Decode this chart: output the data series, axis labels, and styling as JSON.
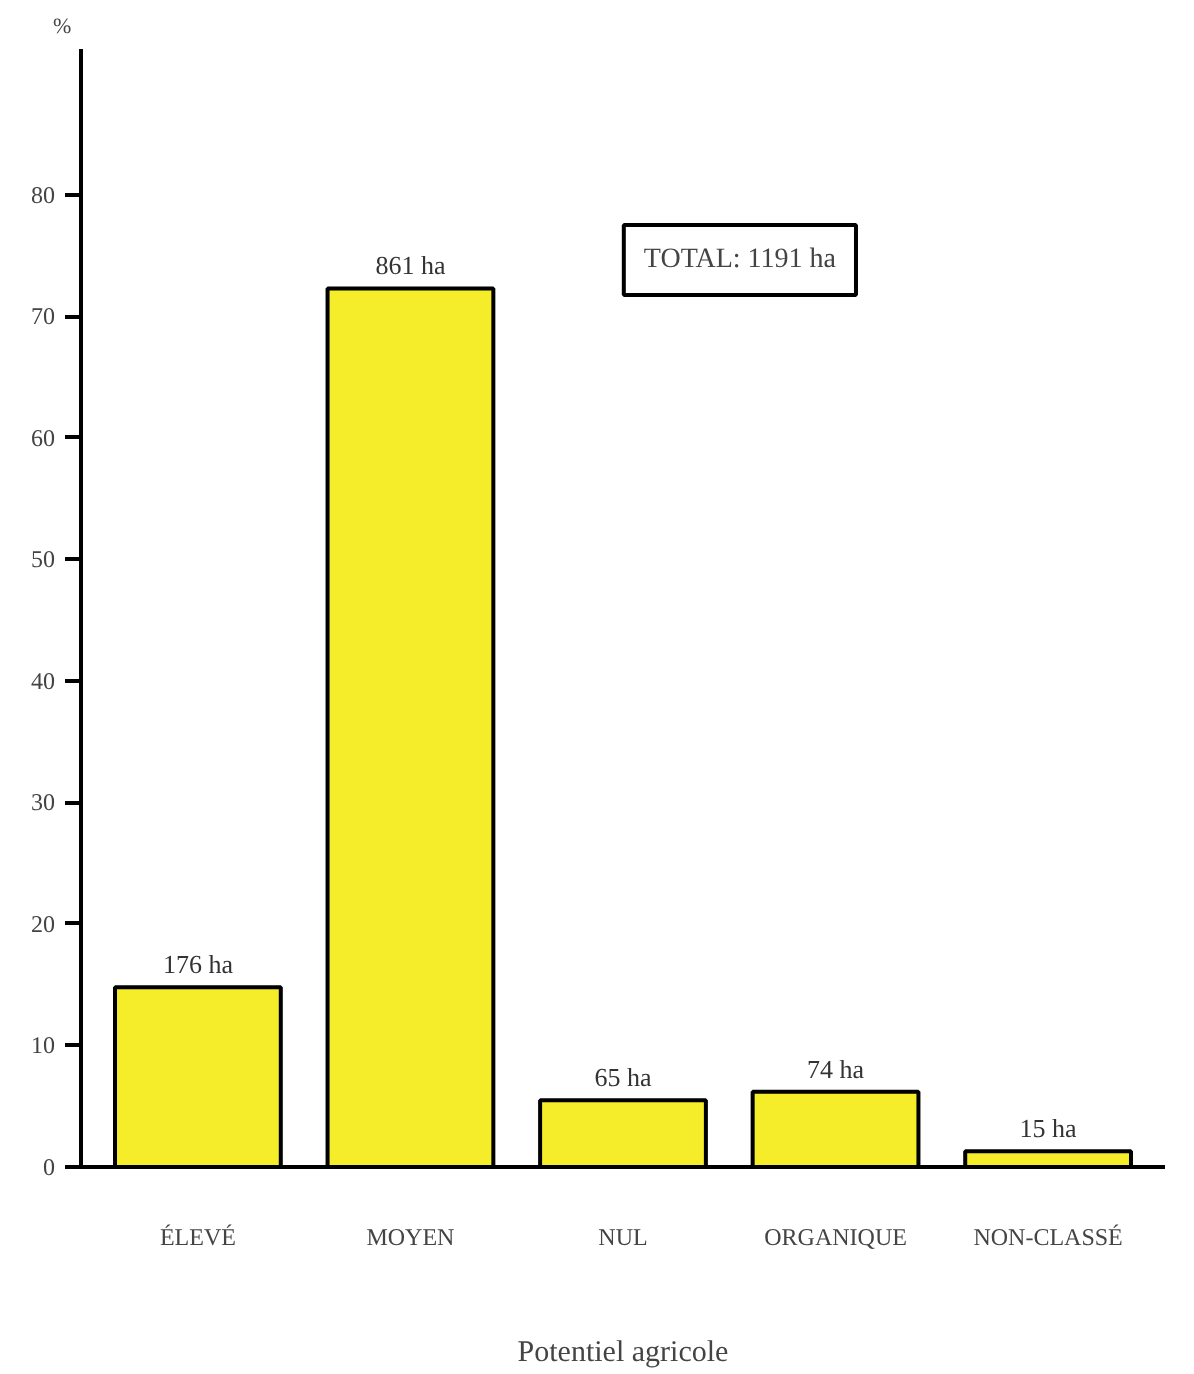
{
  "chart_data": {
    "type": "bar",
    "ylabel": "%",
    "xlabel": "Potentiel agricole",
    "categories": [
      "ÉLEVÉ",
      "MOYEN",
      "NUL",
      "ORGANIQUE",
      "NON-CLASSÉ"
    ],
    "values": [
      14.8,
      72.3,
      5.5,
      6.2,
      1.3
    ],
    "color": "#f5ec2a",
    "ylim": [
      0,
      92
    ],
    "yticks": [
      0,
      10,
      20,
      30,
      40,
      50,
      60,
      70,
      80
    ],
    "grid": false,
    "annotations": [
      {
        "text": "176 ha",
        "x": "ÉLEVÉ",
        "y": 14.8
      },
      {
        "text": "861 ha",
        "x": "MOYEN",
        "y": 72.3
      },
      {
        "text": "65 ha",
        "x": "NUL",
        "y": 5.5
      },
      {
        "text": "74 ha",
        "x": "ORGANIQUE",
        "y": 6.2
      },
      {
        "text": "15 ha",
        "x": "NON-CLASSÉ",
        "y": 1.3
      },
      "TOTAL: 1191 ha"
    ]
  }
}
